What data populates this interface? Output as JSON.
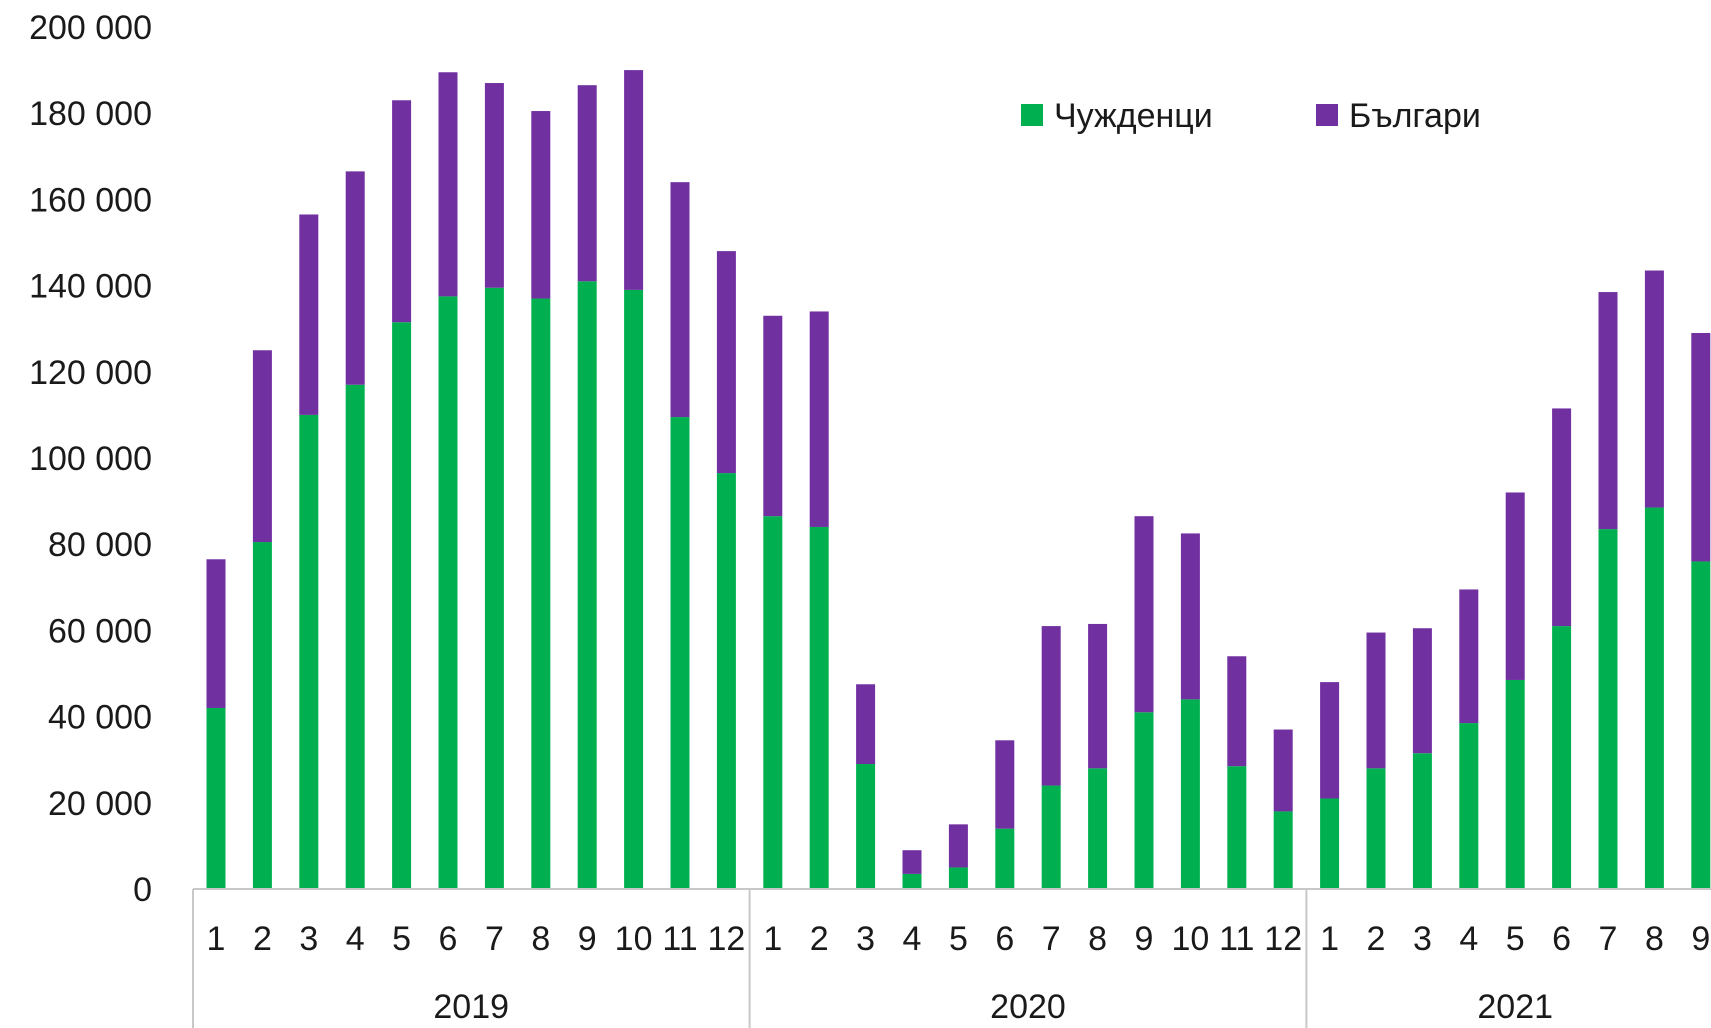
{
  "chart_data": {
    "type": "bar",
    "stacked": true,
    "groups": [
      {
        "label": "2019",
        "categories": [
          "1",
          "2",
          "3",
          "4",
          "5",
          "6",
          "7",
          "8",
          "9",
          "10",
          "11",
          "12"
        ]
      },
      {
        "label": "2020",
        "categories": [
          "1",
          "2",
          "3",
          "4",
          "5",
          "6",
          "7",
          "8",
          "9",
          "10",
          "11",
          "12"
        ]
      },
      {
        "label": "2021",
        "categories": [
          "1",
          "2",
          "3",
          "4",
          "5",
          "6",
          "7",
          "8",
          "9"
        ]
      }
    ],
    "series": [
      {
        "name": "Чужденци",
        "color": "#00b050",
        "values": [
          42000,
          80500,
          110000,
          117000,
          131500,
          137500,
          139500,
          137000,
          141000,
          139000,
          109500,
          96500,
          86500,
          84000,
          29000,
          3500,
          5000,
          14000,
          24000,
          28000,
          41000,
          44000,
          28500,
          18000,
          21000,
          28000,
          31500,
          38500,
          48500,
          61000,
          83500,
          88500,
          76000
        ]
      },
      {
        "name": "Българи",
        "color": "#7030a0",
        "values": [
          34500,
          44500,
          46500,
          49500,
          51500,
          52000,
          47500,
          43500,
          45500,
          51000,
          54500,
          51500,
          46500,
          50000,
          18500,
          5500,
          10000,
          20500,
          37000,
          33500,
          45500,
          38500,
          25500,
          19000,
          27000,
          31500,
          29000,
          31000,
          43500,
          50500,
          55000,
          55000,
          53000
        ]
      }
    ],
    "ylim": [
      0,
      200000
    ],
    "yticks": [
      "0",
      "20 000",
      "40 000",
      "60 000",
      "80 000",
      "100 000",
      "120 000",
      "140 000",
      "160 000",
      "180 000",
      "200 000"
    ],
    "ytick_values": [
      0,
      20000,
      40000,
      60000,
      80000,
      100000,
      120000,
      140000,
      160000,
      180000,
      200000
    ],
    "legend_position": "top-right",
    "grid": false
  }
}
